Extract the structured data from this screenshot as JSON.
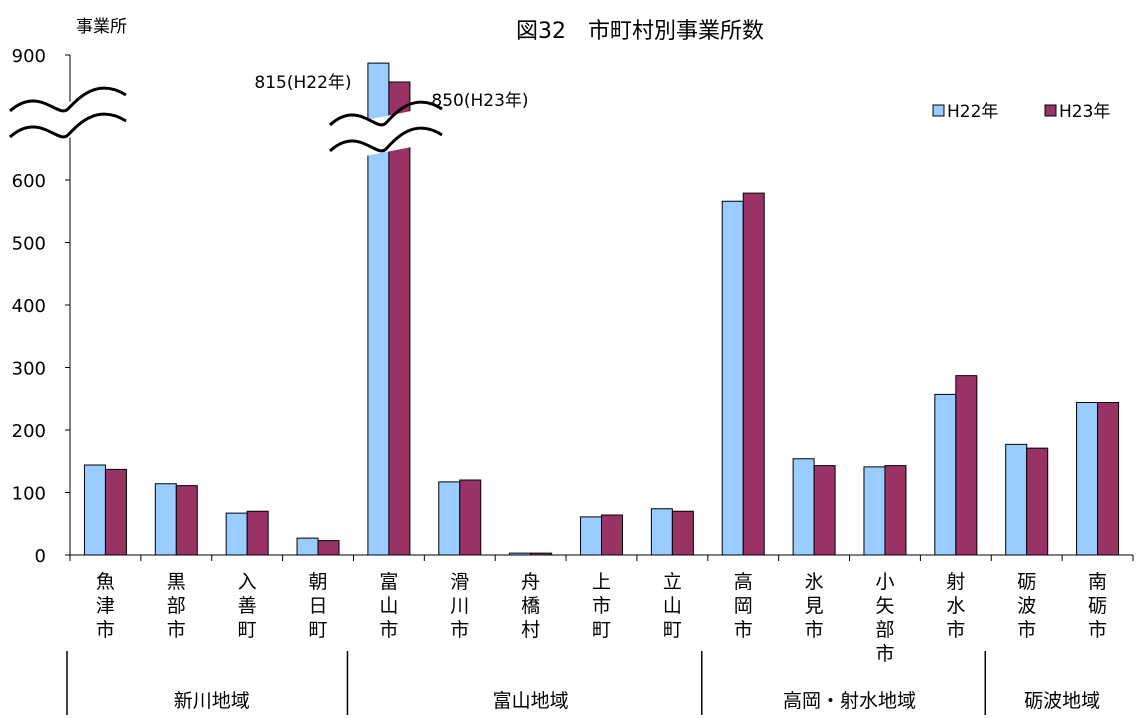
{
  "chart_data": {
    "type": "bar",
    "title": "図32　市町村別事業所数",
    "ylabel": "事業所",
    "ylim": [
      0,
      900
    ],
    "yticks": [
      "0",
      "100",
      "200",
      "300",
      "400",
      "500",
      "600",
      "900"
    ],
    "axis_break": "between 600 and 900",
    "legend_position": "top-right",
    "categories": [
      "魚津市",
      "黒部市",
      "入善町",
      "朝日町",
      "富山市",
      "滑川市",
      "舟橋村",
      "上市町",
      "立山町",
      "高岡市",
      "氷見市",
      "小矢部市",
      "射水市",
      "砺波市",
      "南砺市"
    ],
    "series": [
      {
        "name": "H22年",
        "color": "#99ccff",
        "values": [
          144,
          114,
          67,
          27,
          815,
          117,
          3,
          61,
          74,
          566,
          154,
          141,
          257,
          177,
          244
        ]
      },
      {
        "name": "H23年",
        "color": "#993366",
        "values": [
          137,
          111,
          70,
          23,
          850,
          120,
          3,
          64,
          70,
          579,
          143,
          143,
          287,
          171,
          244
        ]
      }
    ],
    "annotations": [
      "815(H22年)",
      "850(H23年)"
    ],
    "groups": [
      {
        "label": "新川地域",
        "from": 0,
        "to": 3
      },
      {
        "label": "富山地域",
        "from": 4,
        "to": 8
      },
      {
        "label": "高岡・射水地域",
        "from": 9,
        "to": 12
      },
      {
        "label": "砺波地域",
        "from": 13,
        "to": 14
      }
    ]
  }
}
